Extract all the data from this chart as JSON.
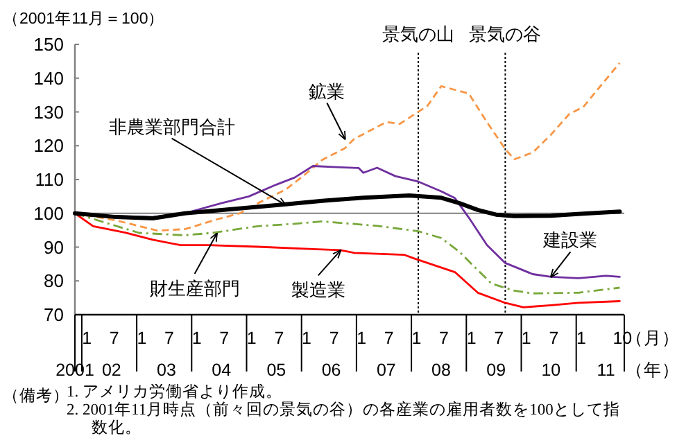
{
  "chart_data": {
    "type": "line",
    "ylabel": "（2001年11月＝100）",
    "xlim": [
      "2001-11",
      "2011-11"
    ],
    "xticks": [
      {
        "value": "2002-01",
        "label": "1"
      },
      {
        "value": "2002-07",
        "label": "7"
      },
      {
        "value": "2003-01",
        "label": "1"
      },
      {
        "value": "2003-07",
        "label": "7"
      },
      {
        "value": "2004-01",
        "label": "1"
      },
      {
        "value": "2004-07",
        "label": "7"
      },
      {
        "value": "2005-01",
        "label": "1"
      },
      {
        "value": "2005-07",
        "label": "7"
      },
      {
        "value": "2006-01",
        "label": "1"
      },
      {
        "value": "2006-07",
        "label": "7"
      },
      {
        "value": "2007-01",
        "label": "1"
      },
      {
        "value": "2007-07",
        "label": "7"
      },
      {
        "value": "2008-01",
        "label": "1"
      },
      {
        "value": "2008-07",
        "label": "7"
      },
      {
        "value": "2009-01",
        "label": "1"
      },
      {
        "value": "2009-07",
        "label": "7"
      },
      {
        "value": "2010-01",
        "label": "1"
      },
      {
        "value": "2010-07",
        "label": "7"
      },
      {
        "value": "2011-01",
        "label": "1"
      },
      {
        "value": "2011-10",
        "label": "10"
      }
    ],
    "ylim": [
      70,
      150
    ],
    "yticks": [
      70,
      80,
      90,
      100,
      110,
      120,
      130,
      140,
      150
    ],
    "grid": false,
    "marker": "none",
    "series": [
      {
        "color": "#f79646",
        "line_style": "dashed",
        "x": [
          "2001-11",
          "2002-08",
          "2003-05",
          "2003-11",
          "2004-06",
          "2004-11",
          "2005-03",
          "2005-09",
          "2006-01",
          "2006-05",
          "2006-10",
          "2006-12",
          "2007-07",
          "2007-10",
          "2008-04",
          "2008-07",
          "2009-01",
          "2009-05",
          "2009-09",
          "2009-11",
          "2010-03",
          "2010-07",
          "2010-11",
          "2011-02",
          "2011-06",
          "2011-10"
        ],
        "values": [
          100,
          97.9,
          94.9,
          95.3,
          98.2,
          100,
          103,
          107,
          111.2,
          115.8,
          119.3,
          122,
          127,
          126.5,
          131.8,
          137.6,
          135.5,
          127,
          119,
          116,
          118,
          123.3,
          129.4,
          131.4,
          138,
          144.5
        ]
      },
      {
        "color": "#7030a0",
        "line_style": "solid",
        "x": [
          "2001-11",
          "2002-03",
          "2003-04",
          "2003-11",
          "2004-07",
          "2005-01",
          "2005-07",
          "2005-11",
          "2006-03",
          "2006-09",
          "2007-01",
          "2007-02",
          "2007-05",
          "2007-09",
          "2008-02",
          "2008-07",
          "2008-10",
          "2009-01",
          "2009-05",
          "2009-09",
          "2010-03",
          "2010-07",
          "2011-01",
          "2011-07",
          "2011-10"
        ],
        "values": [
          100,
          99.3,
          98.9,
          100,
          103,
          105,
          108.5,
          110.6,
          114,
          113.6,
          113.4,
          112,
          113.5,
          111,
          109.4,
          106.5,
          104.5,
          98.8,
          90.6,
          85.3,
          82,
          81.2,
          80.8,
          81.5,
          81.2
        ]
      },
      {
        "color": "#77a83a",
        "line_style": "dashdot",
        "x": [
          "2001-11",
          "2003-01",
          "2003-11",
          "2004-05",
          "2005-03",
          "2005-11",
          "2006-05",
          "2007-05",
          "2008-02",
          "2008-07",
          "2008-11",
          "2009-02",
          "2009-06",
          "2009-11",
          "2010-03",
          "2011-01",
          "2011-10"
        ],
        "values": [
          100,
          94.2,
          93.5,
          94.2,
          96.2,
          96.9,
          97.6,
          96.3,
          94.7,
          92.7,
          88.6,
          84.5,
          79.2,
          77.1,
          76.3,
          76.5,
          78
        ]
      },
      {
        "color": "#ff0000",
        "line_style": "solid",
        "x": [
          "2001-11",
          "2002-03",
          "2002-10",
          "2003-04",
          "2003-10",
          "2004-04",
          "2005-03",
          "2006-03",
          "2006-09",
          "2006-12",
          "2007-11",
          "2008-01",
          "2008-10",
          "2009-03",
          "2009-09",
          "2010-01",
          "2010-07",
          "2011-01",
          "2011-10"
        ],
        "values": [
          100,
          96.2,
          94.3,
          92.2,
          90.6,
          90.6,
          90.1,
          89.4,
          89.1,
          88.3,
          87.7,
          86.7,
          82.6,
          76.5,
          73.5,
          72.2,
          72.8,
          73.5,
          74
        ]
      },
      {
        "color": "#000000",
        "line_style": "solid",
        "x": [
          "2001-11",
          "2002-08",
          "2003-04",
          "2003-11",
          "2005-07",
          "2006-05",
          "2007-02",
          "2007-12",
          "2008-07",
          "2008-11",
          "2009-03",
          "2009-07",
          "2009-11",
          "2010-07",
          "2011-02",
          "2011-10"
        ],
        "values": [
          100,
          98.9,
          98.5,
          100,
          102.4,
          103.7,
          104.6,
          105.3,
          104.6,
          103,
          101,
          99.6,
          99.2,
          99.3,
          99.9,
          100.5
        ]
      }
    ],
    "ref_lines": [
      {
        "axis": "y",
        "value": 100,
        "color": "#808080",
        "line_style": "solid"
      },
      {
        "axis": "x",
        "value": "2008-02",
        "label": "景気の山",
        "color": "#000000",
        "line_style": "dotted"
      },
      {
        "axis": "x",
        "value": "2009-09",
        "label": "景気の谷",
        "color": "#000000",
        "line_style": "dotted"
      }
    ],
    "annotations": [
      {
        "text": "鉱業",
        "x": "2006-10",
        "y": 122
      },
      {
        "text": "非農業部門合計",
        "x": "2005-09",
        "y": 102.5
      },
      {
        "text": "財生産部門",
        "x": "2004-06",
        "y": 94
      },
      {
        "text": "製造業",
        "x": "2006-09",
        "y": 89
      },
      {
        "text": "建設業",
        "x": "2010-07",
        "y": 81.2
      },
      "2001",
      "02",
      "03",
      "04",
      "05",
      "06",
      "07",
      "08",
      "09",
      "10",
      "11",
      "（月）",
      "（年）",
      "（備考）",
      "1.  アメリカ労働省より作成。",
      "2.  2001年11月時点（前々回の景気の谷）の各産業の雇用者数を100として指数化。"
    ]
  }
}
